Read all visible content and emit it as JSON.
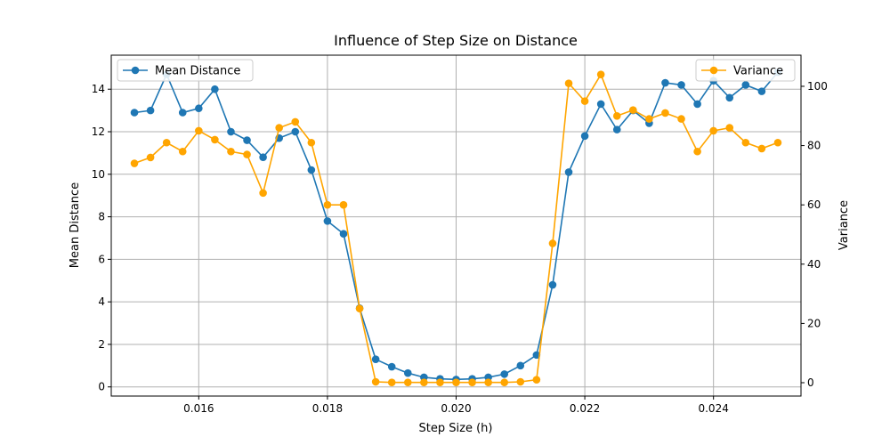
{
  "chart_data": {
    "type": "line",
    "title": "Influence of Step Size on Distance",
    "xlabel": "Step Size (h)",
    "ylabel_left": "Mean Distance",
    "ylabel_right": "Variance",
    "x": [
      0.015,
      0.01525,
      0.0155,
      0.01575,
      0.016,
      0.01625,
      0.0165,
      0.01675,
      0.017,
      0.01725,
      0.0175,
      0.01775,
      0.018,
      0.01825,
      0.0185,
      0.01875,
      0.019,
      0.01925,
      0.0195,
      0.01975,
      0.02,
      0.02025,
      0.0205,
      0.02075,
      0.021,
      0.02125,
      0.0215,
      0.02175,
      0.022,
      0.02225,
      0.0225,
      0.02275,
      0.023,
      0.02325,
      0.0235,
      0.02375,
      0.024,
      0.02425,
      0.0245,
      0.02475,
      0.025
    ],
    "xlim": [
      0.01464,
      0.02536
    ],
    "xticks": [
      0.016,
      0.018,
      0.02,
      0.022,
      0.024
    ],
    "xtick_labels": [
      "0.016",
      "0.018",
      "0.020",
      "0.022",
      "0.024"
    ],
    "ylim_left": [
      -0.43,
      15.6
    ],
    "yticks_left": [
      0,
      2,
      4,
      6,
      8,
      10,
      12,
      14
    ],
    "ylim_right": [
      -4.5,
      110.5
    ],
    "yticks_right": [
      0,
      20,
      40,
      60,
      80,
      100
    ],
    "grid": true,
    "series": [
      {
        "name": "Mean Distance",
        "axis": "left",
        "color": "#1f77b4",
        "values": [
          12.9,
          13.0,
          14.7,
          12.9,
          13.1,
          14.0,
          12.0,
          11.6,
          10.8,
          11.7,
          12.0,
          10.2,
          7.8,
          7.2,
          3.7,
          1.3,
          0.95,
          0.65,
          0.45,
          0.38,
          0.35,
          0.38,
          0.45,
          0.6,
          1.0,
          1.5,
          4.8,
          10.1,
          11.8,
          13.3,
          12.1,
          13.0,
          12.4,
          14.3,
          14.2,
          13.3,
          14.4,
          13.6,
          14.2,
          13.9,
          14.8
        ]
      },
      {
        "name": "Variance",
        "axis": "right",
        "color": "#ffa500",
        "values": [
          74,
          76,
          81,
          78,
          85,
          82,
          78,
          77,
          64,
          86,
          88,
          81,
          60,
          60,
          25,
          0.3,
          0.1,
          0.1,
          0.1,
          0.1,
          0.1,
          0.1,
          0.1,
          0.1,
          0.3,
          1.0,
          47,
          101,
          95,
          104,
          90,
          92,
          89,
          91,
          89,
          78,
          85,
          86,
          81,
          79,
          81
        ]
      }
    ],
    "legend_left": "top-left",
    "legend_right": "top-right"
  }
}
